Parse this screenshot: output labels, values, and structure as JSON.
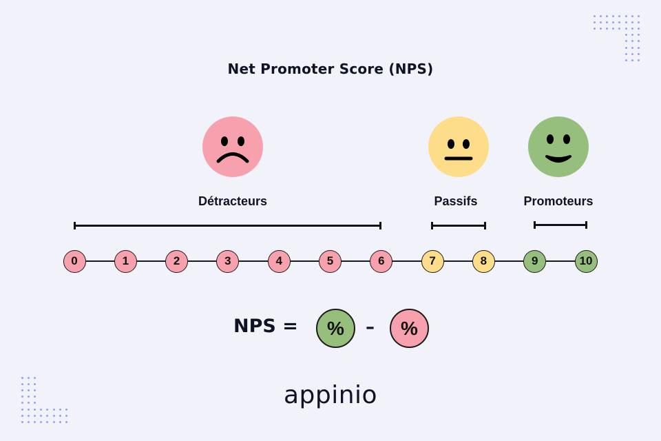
{
  "title": "Net Promoter Score (NPS)",
  "colors": {
    "background": "#F1F2FA",
    "detractor": "#F7A1AE",
    "passive": "#FEDD8A",
    "promoter": "#96BF7E",
    "ink": "#0E1325",
    "dots": "#8FA5F2"
  },
  "groups": [
    {
      "label": "Détracteurs",
      "face": "sad-face",
      "range": [
        0,
        6
      ],
      "color": "#F7A1AE"
    },
    {
      "label": "Passifs",
      "face": "neutral-face",
      "range": [
        7,
        8
      ],
      "color": "#FEDD8A"
    },
    {
      "label": "Promoteurs",
      "face": "happy-face",
      "range": [
        9,
        10
      ],
      "color": "#96BF7E"
    }
  ],
  "scale": [
    "0",
    "1",
    "2",
    "3",
    "4",
    "5",
    "6",
    "7",
    "8",
    "9",
    "10"
  ],
  "formula": {
    "label": "NPS =",
    "promoters_symbol": "%",
    "operator": "–",
    "detractors_symbol": "%"
  },
  "logo": "appinio"
}
